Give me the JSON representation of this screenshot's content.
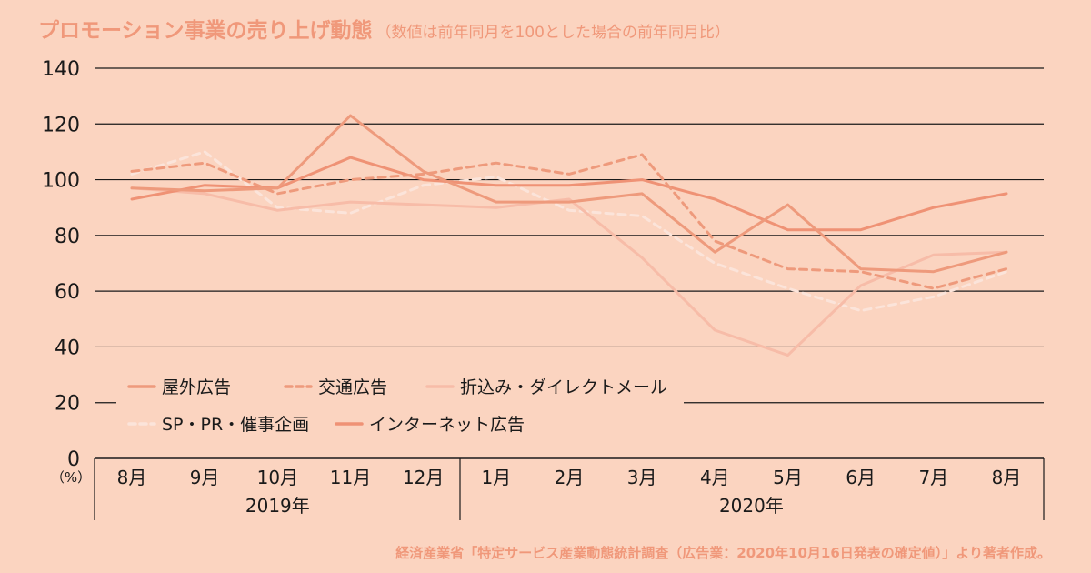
{
  "header": {
    "title": "プロモーション事業の売り上げ動態",
    "subtitle": "（数値は前年同月を100とした場合の前年同月比）"
  },
  "source_note": "経済産業省「特定サービス産業動態統計調査（広告業：2020年10月16日発表の確定値）」より著者作成。",
  "colors": {
    "background": "#fbd4c0",
    "accent": "#f0987a",
    "series": [
      "#ee9a7c",
      "#ee9a7c",
      "#f7bca8",
      "#fbe4da",
      "#ef9275"
    ]
  },
  "chart_data": {
    "type": "line",
    "unit_label": "（%）",
    "ylim": [
      0,
      140
    ],
    "yticks": [
      0,
      20,
      40,
      60,
      80,
      100,
      120,
      140
    ],
    "categories": [
      "8月",
      "9月",
      "10月",
      "11月",
      "12月",
      "1月",
      "2月",
      "3月",
      "4月",
      "5月",
      "6月",
      "7月",
      "8月"
    ],
    "year_groups": [
      {
        "label": "2019年",
        "start": 0,
        "end": 4
      },
      {
        "label": "2020年",
        "start": 5,
        "end": 12
      }
    ],
    "grid": true,
    "legend_position": "bottom-left",
    "series": [
      {
        "name": "屋外広告",
        "style": "solid",
        "values": [
          97,
          96,
          97,
          123,
          103,
          92,
          92,
          95,
          74,
          91,
          68,
          67,
          74
        ]
      },
      {
        "name": "交通広告",
        "style": "dashed",
        "values": [
          103,
          106,
          95,
          100,
          102,
          106,
          102,
          109,
          78,
          68,
          67,
          61,
          68
        ]
      },
      {
        "name": "折込み・ダイレクトメール",
        "style": "solid",
        "values": [
          97,
          95,
          89,
          92,
          91,
          90,
          93,
          72,
          46,
          37,
          62,
          73,
          74
        ]
      },
      {
        "name": "SP・PR・催事企画",
        "style": "dashed",
        "values": [
          102,
          110,
          90,
          88,
          98,
          101,
          89,
          87,
          70,
          61,
          53,
          58,
          67
        ]
      },
      {
        "name": "インターネット広告",
        "style": "solid",
        "values": [
          93,
          98,
          97,
          108,
          100,
          98,
          98,
          100,
          93,
          82,
          82,
          90,
          95
        ]
      }
    ]
  }
}
